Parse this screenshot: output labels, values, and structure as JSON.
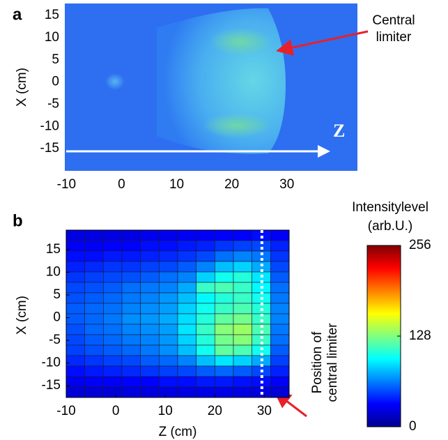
{
  "chart_data": [
    {
      "type": "image",
      "label": "a",
      "xlim": [
        -10.3,
        42.8
      ],
      "ylim": [
        -20,
        17.7
      ],
      "xticks": [
        -10,
        0,
        10,
        20,
        30
      ],
      "yticks": [
        -15,
        -10,
        -5,
        0,
        5,
        10,
        15
      ],
      "ylabel": "X (cm)",
      "axis_arrow_label": "Z",
      "annotation": [
        "Central",
        "limiter"
      ]
    },
    {
      "type": "heatmap",
      "label": "b",
      "xlim": [
        -10,
        35
      ],
      "ylim": [
        -17.6,
        19.3
      ],
      "xticks": [
        -10,
        0,
        10,
        20,
        30
      ],
      "yticks": [
        -15,
        -10,
        -5,
        0,
        5,
        10,
        15
      ],
      "xlabel": "Z (cm)",
      "ylabel": "X (cm)",
      "limiter_z": 29.5,
      "limiter_label": [
        "Position of",
        "central limiter"
      ],
      "clim": [
        0,
        256
      ],
      "cticks": [
        0,
        128,
        256
      ],
      "colorbar_label": [
        "Intensitylevel",
        "(arb.U.)"
      ],
      "z": [
        [
          25,
          25,
          25,
          25,
          28,
          28,
          30,
          30,
          32,
          32,
          35,
          30
        ],
        [
          30,
          30,
          32,
          32,
          35,
          35,
          38,
          40,
          45,
          48,
          50,
          40
        ],
        [
          35,
          35,
          38,
          38,
          40,
          42,
          45,
          50,
          60,
          65,
          62,
          45
        ],
        [
          40,
          42,
          45,
          45,
          48,
          50,
          55,
          65,
          80,
          85,
          75,
          50
        ],
        [
          45,
          48,
          50,
          52,
          55,
          60,
          65,
          85,
          100,
          105,
          90,
          55
        ],
        [
          50,
          52,
          55,
          60,
          62,
          65,
          75,
          110,
          115,
          110,
          95,
          60
        ],
        [
          52,
          55,
          58,
          62,
          65,
          70,
          80,
          95,
          105,
          110,
          100,
          62
        ],
        [
          55,
          58,
          60,
          65,
          68,
          72,
          85,
          100,
          110,
          115,
          105,
          65
        ],
        [
          55,
          58,
          62,
          68,
          70,
          75,
          88,
          105,
          120,
          125,
          110,
          65
        ],
        [
          52,
          58,
          60,
          65,
          68,
          72,
          90,
          110,
          130,
          135,
          115,
          62
        ],
        [
          50,
          55,
          58,
          62,
          65,
          70,
          85,
          105,
          125,
          130,
          110,
          60
        ],
        [
          48,
          52,
          55,
          58,
          62,
          68,
          80,
          100,
          120,
          115,
          100,
          55
        ],
        [
          42,
          45,
          48,
          50,
          55,
          58,
          65,
          80,
          90,
          85,
          75,
          48
        ],
        [
          35,
          38,
          40,
          42,
          45,
          48,
          50,
          55,
          58,
          55,
          50,
          40
        ],
        [
          28,
          30,
          30,
          32,
          32,
          35,
          35,
          38,
          38,
          36,
          35,
          30
        ],
        [
          22,
          22,
          22,
          24,
          24,
          25,
          25,
          26,
          26,
          25,
          25,
          22
        ]
      ]
    }
  ]
}
